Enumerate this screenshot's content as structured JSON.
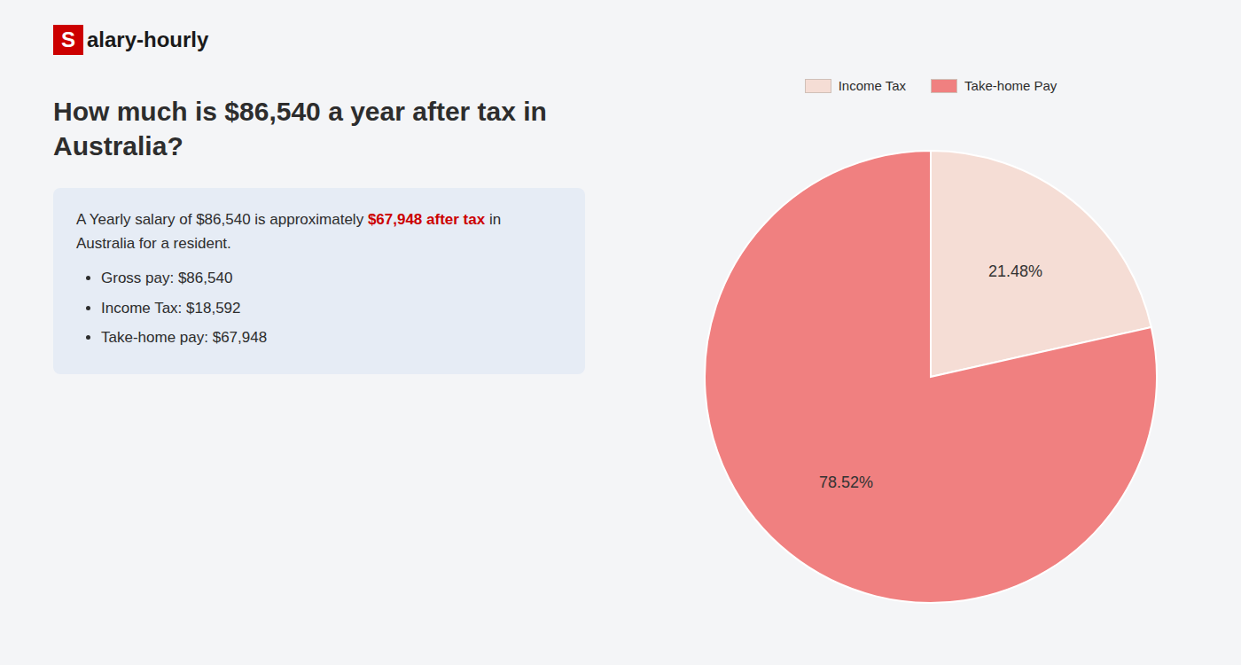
{
  "chart_data": {
    "type": "pie",
    "title": "How much is $86,540 a year after tax in Australia?",
    "categories": [
      "Income Tax",
      "Take-home Pay"
    ],
    "values": [
      21.48,
      78.52
    ],
    "value_labels": [
      "21.48%",
      "78.52%"
    ],
    "colors": [
      "#f5ddd5",
      "#f08080"
    ],
    "data_labels": true,
    "legend": "top",
    "annotations": [
      {
        "text": "S",
        "color": "#cc0000"
      },
      {
        "text": "alary-hourly"
      },
      {
        "text": "A Yearly salary of $86,540 is approximately "
      },
      {
        "text": "$67,948 after tax",
        "color": "#cc0000"
      },
      {
        "text": " in"
      },
      {
        "text": "Australia for a resident."
      },
      {
        "text": "Gross pay: $86,540"
      },
      {
        "text": "Income Tax: $18,592"
      },
      {
        "text": "Take-home pay: $67,948"
      }
    ]
  }
}
